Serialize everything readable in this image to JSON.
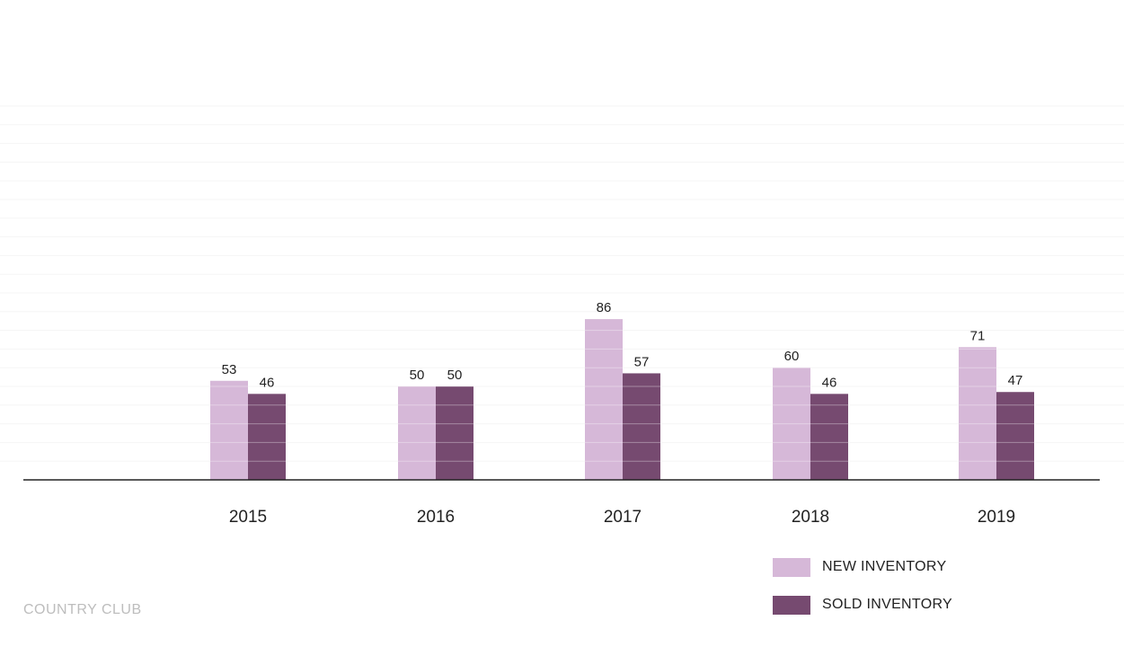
{
  "footer": "COUNTRY CLUB",
  "colors": {
    "new_inventory": "#d6b8d8",
    "sold_inventory": "#764a70",
    "axis": "#222222",
    "grid": "#f2f2f2",
    "footer": "#bdbdbd"
  },
  "legend": [
    {
      "label": "NEW INVENTORY",
      "color": "#d6b8d8"
    },
    {
      "label": "SOLD INVENTORY",
      "color": "#764a70"
    }
  ],
  "chart_data": {
    "type": "bar",
    "categories": [
      "2015",
      "2016",
      "2017",
      "2018",
      "2019"
    ],
    "series": [
      {
        "name": "NEW INVENTORY",
        "values": [
          53,
          50,
          86,
          60,
          71
        ]
      },
      {
        "name": "SOLD INVENTORY",
        "values": [
          46,
          50,
          57,
          46,
          47
        ]
      }
    ],
    "title": "",
    "xlabel": "",
    "ylabel": "",
    "ylim": [
      0,
      200
    ],
    "grid": true,
    "data_labels": true,
    "legend_position": "bottom-right"
  }
}
